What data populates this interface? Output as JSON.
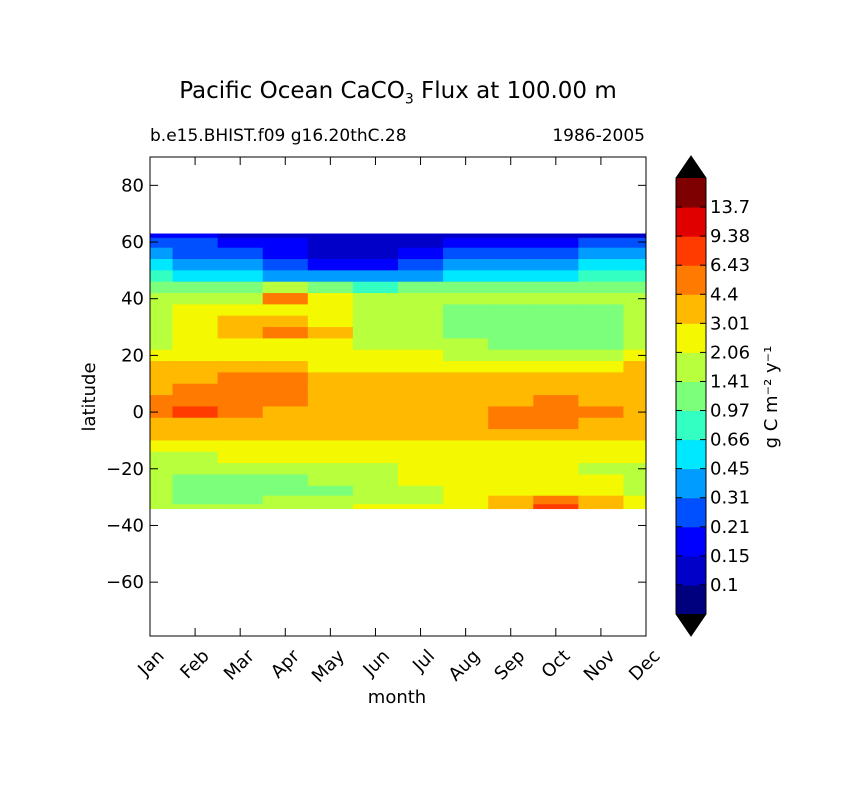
{
  "chart_data": {
    "type": "contour",
    "title": "Pacific Ocean CaCO",
    "title_subscript": "3",
    "title_suffix": "Flux at 100.00 m",
    "subtitle_left": "b.e15.BHIST.f09 g16.20thC.28",
    "subtitle_right": "1986-2005",
    "xlabel": "month",
    "ylabel": "latitude",
    "x_categories": [
      "Jan",
      "Feb",
      "Mar",
      "Apr",
      "May",
      "Jun",
      "Jul",
      "Aug",
      "Sep",
      "Oct",
      "Nov",
      "Dec"
    ],
    "y_ticks": [
      80,
      60,
      40,
      20,
      0,
      -20,
      -40,
      -60
    ],
    "y_tick_labels": [
      "80",
      "60",
      "40",
      "20",
      "0",
      "−20",
      "−40",
      "−60"
    ],
    "ylim": [
      -79,
      90
    ],
    "data_lat_range": [
      -34,
      63
    ],
    "colorbar": {
      "label": "g C m⁻² y⁻¹",
      "levels": [
        "0.1",
        "0.15",
        "0.21",
        "0.31",
        "0.45",
        "0.66",
        "0.97",
        "1.41",
        "2.06",
        "3.01",
        "4.4",
        "6.43",
        "9.38",
        "13.7"
      ],
      "colors": [
        "#00007f",
        "#0000c8",
        "#0000ff",
        "#0050ff",
        "#009cff",
        "#00e8ff",
        "#34ffc2",
        "#7cff7a",
        "#b8ff3d",
        "#f4f800",
        "#ffb900",
        "#ff7a00",
        "#ff3b00",
        "#e00000",
        "#7f0000"
      ],
      "extend": "both",
      "under_color": "#000000",
      "over_color": "#000000"
    },
    "field": {
      "description": "CaCO3 flux by month (columns Jan..Dec) and latitude (rows, north to south); values are colour-class indices 0-14 into the colorbar",
      "lats": [
        63,
        60,
        56,
        52,
        48,
        44,
        40,
        36,
        32,
        28,
        24,
        20,
        16,
        12,
        8,
        4,
        0,
        -4,
        -8,
        -12,
        -16,
        -20,
        -24,
        -28,
        -31,
        -34
      ],
      "classes": [
        [
          2,
          2,
          1,
          1,
          1,
          1,
          1,
          1,
          1,
          1,
          1,
          1
        ],
        [
          3,
          3,
          2,
          2,
          1,
          1,
          1,
          2,
          2,
          2,
          3,
          3
        ],
        [
          4,
          3,
          3,
          2,
          1,
          1,
          2,
          3,
          3,
          3,
          4,
          4
        ],
        [
          5,
          4,
          4,
          3,
          2,
          2,
          3,
          4,
          4,
          4,
          5,
          5
        ],
        [
          6,
          5,
          5,
          4,
          4,
          4,
          4,
          5,
          5,
          5,
          6,
          6
        ],
        [
          7,
          7,
          7,
          8,
          7,
          6,
          7,
          7,
          7,
          7,
          7,
          7
        ],
        [
          8,
          8,
          8,
          11,
          9,
          8,
          8,
          8,
          8,
          8,
          8,
          8
        ],
        [
          8,
          9,
          9,
          9,
          9,
          8,
          8,
          7,
          7,
          7,
          7,
          8
        ],
        [
          8,
          9,
          10,
          10,
          9,
          8,
          8,
          7,
          7,
          7,
          7,
          8
        ],
        [
          8,
          9,
          10,
          11,
          10,
          8,
          8,
          7,
          7,
          7,
          7,
          8
        ],
        [
          8,
          9,
          9,
          9,
          9,
          8,
          8,
          8,
          7,
          7,
          7,
          8
        ],
        [
          9,
          9,
          9,
          9,
          9,
          9,
          9,
          8,
          8,
          8,
          8,
          9
        ],
        [
          10,
          10,
          10,
          10,
          9,
          9,
          9,
          9,
          9,
          9,
          9,
          10
        ],
        [
          10,
          10,
          11,
          11,
          10,
          10,
          10,
          10,
          10,
          10,
          10,
          10
        ],
        [
          10,
          11,
          11,
          11,
          10,
          10,
          10,
          10,
          10,
          10,
          10,
          10
        ],
        [
          11,
          11,
          11,
          11,
          10,
          10,
          10,
          10,
          10,
          11,
          10,
          10
        ],
        [
          11,
          12,
          11,
          10,
          10,
          10,
          10,
          10,
          11,
          11,
          11,
          10
        ],
        [
          10,
          10,
          10,
          10,
          10,
          10,
          10,
          10,
          11,
          11,
          10,
          10
        ],
        [
          10,
          10,
          10,
          10,
          10,
          10,
          10,
          10,
          10,
          10,
          10,
          10
        ],
        [
          9,
          9,
          9,
          9,
          9,
          9,
          9,
          9,
          9,
          9,
          9,
          9
        ],
        [
          8,
          8,
          9,
          9,
          9,
          9,
          9,
          9,
          9,
          9,
          9,
          9
        ],
        [
          8,
          8,
          8,
          8,
          8,
          8,
          9,
          9,
          9,
          9,
          8,
          8
        ],
        [
          8,
          7,
          7,
          7,
          8,
          8,
          9,
          9,
          9,
          9,
          9,
          8
        ],
        [
          8,
          7,
          7,
          7,
          7,
          8,
          8,
          9,
          9,
          9,
          9,
          8
        ],
        [
          8,
          7,
          7,
          8,
          8,
          8,
          8,
          9,
          10,
          11,
          10,
          9
        ],
        [
          8,
          8,
          8,
          8,
          8,
          9,
          9,
          9,
          10,
          12,
          10,
          9
        ]
      ]
    }
  }
}
